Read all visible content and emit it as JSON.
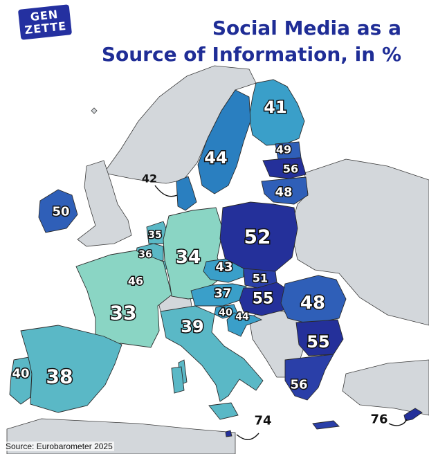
{
  "title_line1": "Social Media as a",
  "title_line2": "Source of Information, in %",
  "logo_line1": "GEN",
  "logo_line2": "ZETTE",
  "source": "Source: Eurobarometer 2025",
  "colors": {
    "sea": "#ffffff",
    "non_eu_land": "#d3d7db",
    "border": "#3a3a3a",
    "title": "#1f2d96",
    "scale": [
      "#8ad5c4",
      "#5ab8c6",
      "#3a9fc9",
      "#2a7fc0",
      "#2f5fb8",
      "#2a3fa8",
      "#24309a"
    ]
  },
  "countries": [
    {
      "name": "Finland",
      "value": 41
    },
    {
      "name": "Sweden",
      "value": 44
    },
    {
      "name": "Estonia",
      "value": 49
    },
    {
      "name": "Latvia",
      "value": 56
    },
    {
      "name": "Lithuania",
      "value": 48
    },
    {
      "name": "Denmark",
      "value": 42
    },
    {
      "name": "Ireland",
      "value": 50
    },
    {
      "name": "Netherlands",
      "value": 35
    },
    {
      "name": "Belgium",
      "value": 36
    },
    {
      "name": "Luxembourg",
      "value": 46
    },
    {
      "name": "Germany",
      "value": 34
    },
    {
      "name": "Poland",
      "value": 52
    },
    {
      "name": "France",
      "value": 33
    },
    {
      "name": "Czechia",
      "value": 43
    },
    {
      "name": "Slovakia",
      "value": 51
    },
    {
      "name": "Austria",
      "value": 37
    },
    {
      "name": "Hungary",
      "value": 55
    },
    {
      "name": "Slovenia",
      "value": 40
    },
    {
      "name": "Croatia",
      "value": 44
    },
    {
      "name": "Romania",
      "value": 48
    },
    {
      "name": "Bulgaria",
      "value": 55
    },
    {
      "name": "Italy",
      "value": 39
    },
    {
      "name": "Greece",
      "value": 56
    },
    {
      "name": "Portugal",
      "value": 40
    },
    {
      "name": "Spain",
      "value": 38
    },
    {
      "name": "Malta",
      "value": 74
    },
    {
      "name": "Cyprus",
      "value": 76
    }
  ]
}
